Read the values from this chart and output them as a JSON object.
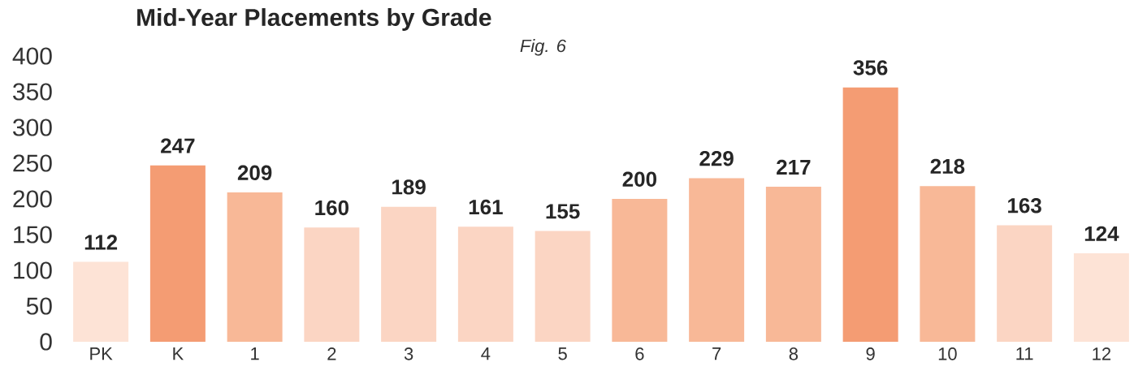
{
  "chart_data": {
    "type": "bar",
    "title": "Mid-Year Placements by Grade",
    "annotations": [
      "Fig. 6"
    ],
    "categories": [
      "PK",
      "K",
      "1",
      "2",
      "3",
      "4",
      "5",
      "6",
      "7",
      "8",
      "9",
      "10",
      "11",
      "12"
    ],
    "values": [
      112,
      247,
      209,
      160,
      189,
      161,
      155,
      200,
      229,
      217,
      356,
      218,
      163,
      124
    ],
    "colors": [
      "#fde3d6",
      "#f49c73",
      "#f8b897",
      "#fbd5c3",
      "#fbd5c3",
      "#fbd5c3",
      "#fbd5c3",
      "#f8b897",
      "#f8b897",
      "#f8b897",
      "#f49c73",
      "#f8b897",
      "#fbd5c3",
      "#fde3d6"
    ],
    "ylim": [
      0,
      400
    ],
    "yticks": [
      0,
      50,
      100,
      150,
      200,
      250,
      300,
      350,
      400
    ],
    "grid": false,
    "data_labels": true
  }
}
